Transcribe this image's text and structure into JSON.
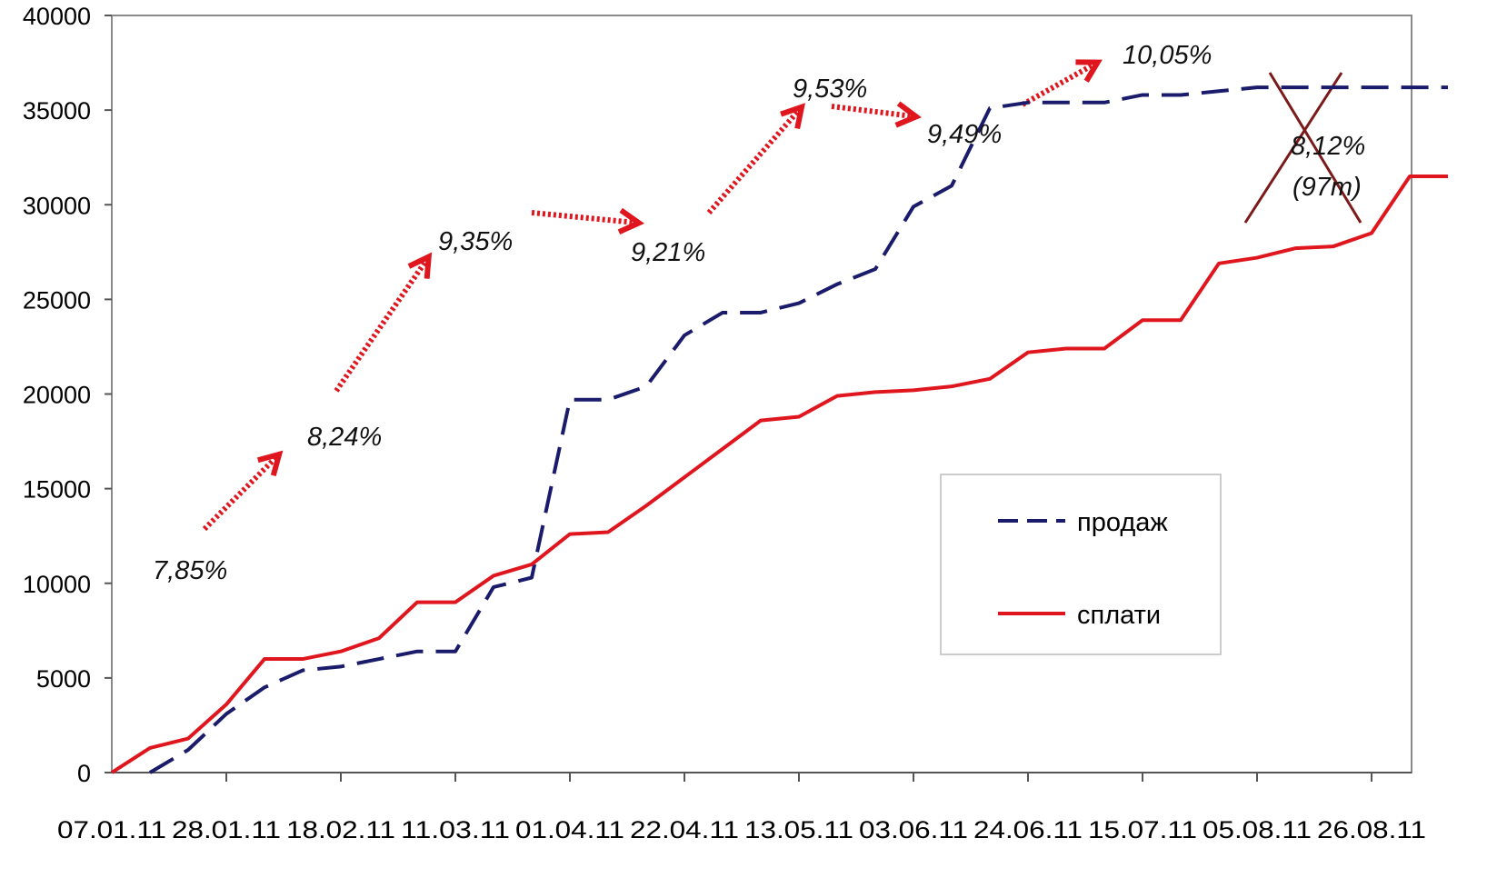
{
  "chart_data": {
    "type": "line",
    "categories": [
      "07.01.11",
      null,
      null,
      "28.01.11",
      null,
      null,
      "18.02.11",
      null,
      null,
      "11.03.11",
      null,
      null,
      "01.04.11",
      null,
      null,
      "22.04.11",
      null,
      null,
      "13.05.11",
      null,
      null,
      "03.06.11",
      null,
      null,
      "24.06.11",
      null,
      null,
      "15.07.11",
      null,
      null,
      "05.08.11",
      null,
      null,
      "26.08.11",
      null,
      null
    ],
    "series": [
      {
        "name": "продаж",
        "color": "#1b1b6b",
        "dashed": true,
        "values": [
          null,
          0,
          1200,
          3100,
          4500,
          5400,
          5600,
          6000,
          6400,
          6400,
          9800,
          10300,
          19700,
          19700,
          20400,
          23100,
          24300,
          24300,
          24800,
          25800,
          26600,
          29900,
          31000,
          35100,
          35400,
          35400,
          35400,
          35800,
          35800,
          36000,
          36200,
          36200,
          36200,
          36200,
          36200,
          36200
        ]
      },
      {
        "name": "сплати",
        "color": "#e0161e",
        "dashed": false,
        "values": [
          0,
          1300,
          1800,
          3600,
          6000,
          6000,
          6400,
          7100,
          9000,
          9000,
          10400,
          11000,
          12600,
          12700,
          14100,
          15600,
          17100,
          18600,
          18800,
          19900,
          20100,
          20200,
          20400,
          20800,
          22200,
          22400,
          22400,
          23900,
          23900,
          26900,
          27200,
          27700,
          27800,
          28500,
          31500,
          31500
        ]
      }
    ],
    "ylim": [
      0,
      40000
    ],
    "yticks": [
      0,
      5000,
      10000,
      15000,
      20000,
      25000,
      30000,
      35000,
      40000
    ],
    "annotations": [
      "7,85%",
      "8,24%",
      "9,35%",
      "9,21%",
      "9,53%",
      "9,49%",
      "10,05%",
      "8,12%",
      "(97m)"
    ]
  }
}
